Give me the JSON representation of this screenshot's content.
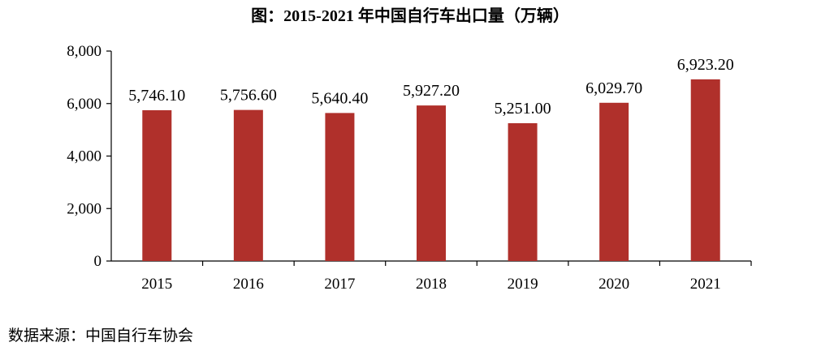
{
  "chart_data": {
    "type": "bar",
    "title": "图：2015-2021 年中国自行车出口量（万辆）",
    "categories": [
      "2015",
      "2016",
      "2017",
      "2018",
      "2019",
      "2020",
      "2021"
    ],
    "values": [
      5746.1,
      5756.6,
      5640.4,
      5927.2,
      5251.0,
      6029.7,
      6923.2
    ],
    "value_labels": [
      "5,746.10",
      "5,756.60",
      "5,640.40",
      "5,927.20",
      "5,251.00",
      "6,029.70",
      "6,923.20"
    ],
    "xlabel": "",
    "ylabel": "",
    "ylim": [
      0,
      8000
    ],
    "yticks": [
      0,
      2000,
      4000,
      6000,
      8000
    ],
    "ytick_labels": [
      "0",
      "2,000",
      "4,000",
      "6,000",
      "8,000"
    ],
    "grid": false,
    "bar_color": "#B0302B",
    "source": "数据来源：中国自行车协会"
  }
}
